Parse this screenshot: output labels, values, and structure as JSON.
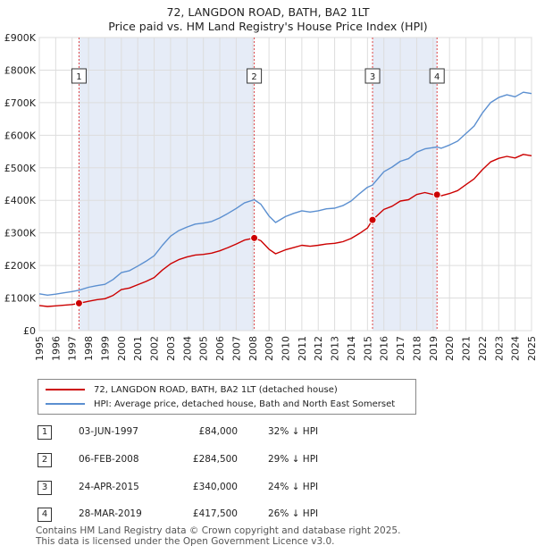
{
  "header": {
    "title": "72, LANGDON ROAD, BATH, BA2 1LT",
    "subtitle": "Price paid vs. HM Land Registry's House Price Index (HPI)"
  },
  "legend": {
    "items": [
      {
        "label": "72, LANGDON ROAD, BATH, BA2 1LT (detached house)",
        "color": "#cc0000"
      },
      {
        "label": "HPI: Average price, detached house, Bath and North East Somerset",
        "color": "#5b8fd0"
      }
    ]
  },
  "transactions": [
    {
      "num": "1",
      "date": "03-JUN-1997",
      "price": "£84,000",
      "hpi": "32% ↓ HPI"
    },
    {
      "num": "2",
      "date": "06-FEB-2008",
      "price": "£284,500",
      "hpi": "29% ↓ HPI"
    },
    {
      "num": "3",
      "date": "24-APR-2015",
      "price": "£340,000",
      "hpi": "24% ↓ HPI"
    },
    {
      "num": "4",
      "date": "28-MAR-2019",
      "price": "£417,500",
      "hpi": "26% ↓ HPI"
    }
  ],
  "footer": {
    "line1": "Contains HM Land Registry data © Crown copyright and database right 2025.",
    "line2": "This data is licensed under the Open Government Licence v3.0."
  },
  "chart_data": {
    "type": "line",
    "title": "72, LANGDON ROAD, BATH, BA2 1LT",
    "xlabel": "",
    "ylabel": "",
    "xlim": [
      1995,
      2025
    ],
    "ylim": [
      0,
      900000
    ],
    "yticks": [
      0,
      100000,
      200000,
      300000,
      400000,
      500000,
      600000,
      700000,
      800000,
      900000
    ],
    "ytick_labels": [
      "£0",
      "£100K",
      "£200K",
      "£300K",
      "£400K",
      "£500K",
      "£600K",
      "£700K",
      "£800K",
      "£900K"
    ],
    "xticks": [
      1995,
      1996,
      1997,
      1998,
      1999,
      2000,
      2001,
      2002,
      2003,
      2004,
      2005,
      2006,
      2007,
      2008,
      2009,
      2010,
      2011,
      2012,
      2013,
      2014,
      2015,
      2016,
      2017,
      2018,
      2019,
      2020,
      2021,
      2022,
      2023,
      2024,
      2025
    ],
    "grid": true,
    "series": [
      {
        "name": "HPI: Average price, detached house, Bath and North East Somerset",
        "color": "#5b8fd0",
        "x": [
          1995.0,
          1995.5,
          1996.0,
          1996.5,
          1997.0,
          1997.42,
          1998.0,
          1998.5,
          1999.0,
          1999.5,
          2000.0,
          2000.5,
          2001.0,
          2001.5,
          2002.0,
          2002.5,
          2003.0,
          2003.5,
          2004.0,
          2004.5,
          2005.0,
          2005.5,
          2006.0,
          2006.5,
          2007.0,
          2007.5,
          2008.1,
          2008.5,
          2009.0,
          2009.4,
          2010.0,
          2010.5,
          2011.0,
          2011.5,
          2012.0,
          2012.5,
          2013.0,
          2013.5,
          2014.0,
          2014.5,
          2015.0,
          2015.31,
          2016.0,
          2016.5,
          2017.0,
          2017.5,
          2018.0,
          2018.5,
          2019.0,
          2019.24,
          2019.5,
          2020.0,
          2020.5,
          2021.0,
          2021.5,
          2022.0,
          2022.5,
          2023.0,
          2023.5,
          2024.0,
          2024.5,
          2025.0
        ],
        "y": [
          113000,
          109000,
          112000,
          116000,
          120000,
          124000,
          133000,
          138000,
          142000,
          157000,
          178000,
          184000,
          198000,
          213000,
          230000,
          262000,
          290000,
          307000,
          318000,
          327000,
          330000,
          335000,
          346000,
          360000,
          375000,
          392000,
          402000,
          388000,
          352000,
          332000,
          350000,
          360000,
          368000,
          364000,
          368000,
          374000,
          376000,
          384000,
          398000,
          420000,
          440000,
          447000,
          488000,
          502000,
          520000,
          528000,
          548000,
          558000,
          562000,
          564000,
          560000,
          570000,
          582000,
          605000,
          628000,
          668000,
          700000,
          716000,
          724000,
          718000,
          732000,
          728000
        ]
      },
      {
        "name": "72, LANGDON ROAD, BATH, BA2 1LT (detached house)",
        "color": "#cc0000",
        "x": [
          1995.0,
          1995.5,
          1996.0,
          1996.5,
          1997.0,
          1997.42,
          1998.0,
          1998.5,
          1999.0,
          1999.5,
          2000.0,
          2000.5,
          2001.0,
          2001.5,
          2002.0,
          2002.5,
          2003.0,
          2003.5,
          2004.0,
          2004.5,
          2005.0,
          2005.5,
          2006.0,
          2006.5,
          2007.0,
          2007.5,
          2008.1,
          2008.5,
          2009.0,
          2009.4,
          2010.0,
          2010.5,
          2011.0,
          2011.5,
          2012.0,
          2012.5,
          2013.0,
          2013.5,
          2014.0,
          2014.5,
          2015.0,
          2015.31,
          2016.0,
          2016.5,
          2017.0,
          2017.5,
          2018.0,
          2018.5,
          2019.0,
          2019.24,
          2019.5,
          2020.0,
          2020.5,
          2021.0,
          2021.5,
          2022.0,
          2022.5,
          2023.0,
          2023.5,
          2024.0,
          2024.5,
          2025.0
        ],
        "y": [
          77000,
          74000,
          76000,
          78000,
          80000,
          84000,
          90000,
          95000,
          98000,
          108000,
          126000,
          131000,
          141000,
          151000,
          163000,
          186000,
          205000,
          218000,
          226000,
          232000,
          234000,
          238000,
          245000,
          255000,
          266000,
          278000,
          284500,
          276000,
          250000,
          236000,
          248000,
          255000,
          262000,
          259000,
          262000,
          266000,
          268000,
          273000,
          283000,
          298000,
          315000,
          340000,
          372000,
          382000,
          398000,
          402000,
          418000,
          424000,
          418000,
          417500,
          414000,
          421000,
          430000,
          448000,
          466000,
          494000,
          518000,
          529000,
          535000,
          530000,
          541000,
          537000
        ]
      }
    ],
    "markers": [
      {
        "num": "1",
        "x": 1997.42,
        "y": 84000
      },
      {
        "num": "2",
        "x": 2008.1,
        "y": 284500
      },
      {
        "num": "3",
        "x": 2015.31,
        "y": 340000
      },
      {
        "num": "4",
        "x": 2019.24,
        "y": 417500
      }
    ]
  }
}
